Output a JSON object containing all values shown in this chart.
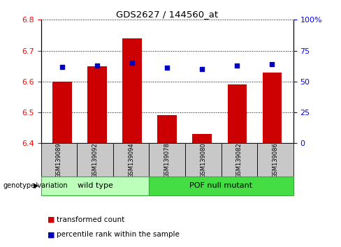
{
  "title": "GDS2627 / 144560_at",
  "samples": [
    "GSM139089",
    "GSM139092",
    "GSM139094",
    "GSM139078",
    "GSM139080",
    "GSM139082",
    "GSM139086"
  ],
  "bar_values": [
    6.6,
    6.65,
    6.74,
    6.49,
    6.43,
    6.59,
    6.63
  ],
  "percentile_values": [
    62,
    63,
    65,
    61,
    60,
    63,
    64
  ],
  "ylim_left": [
    6.4,
    6.8
  ],
  "ylim_right": [
    0,
    100
  ],
  "yticks_left": [
    6.4,
    6.5,
    6.6,
    6.7,
    6.8
  ],
  "yticks_right": [
    0,
    25,
    50,
    75,
    100
  ],
  "bar_color": "#CC0000",
  "dot_color": "#0000BB",
  "wt_color": "#BBFFBB",
  "pof_color": "#44DD44",
  "xtick_bg": "#C8C8C8",
  "legend_red_label": "transformed count",
  "legend_blue_label": "percentile rank within the sample",
  "genotype_label": "genotype/variation",
  "wt_label": "wild type",
  "pof_label": "POF null mutant",
  "wt_count": 3,
  "pof_count": 4
}
